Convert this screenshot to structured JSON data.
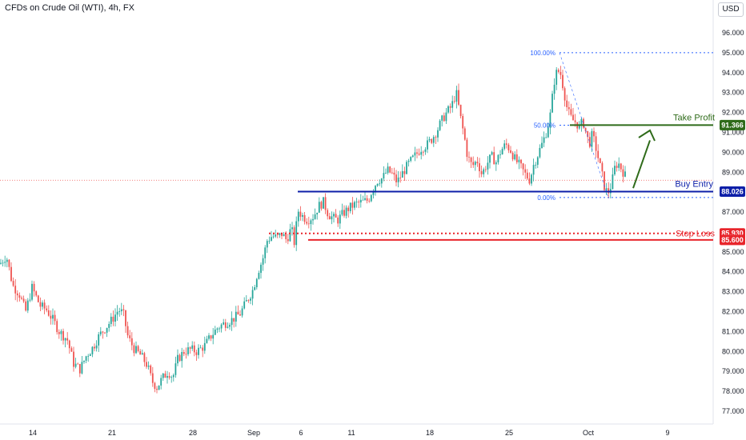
{
  "header": {
    "title": "CFDs on Crude Oil (WTI), 4h, FX",
    "currency_button": "USD"
  },
  "colors": {
    "up": "#26a69a",
    "down": "#ef5350",
    "entry": "#0d1fa8",
    "stop": "#e8252b",
    "target": "#2f6b1a",
    "fib": "#2962ff"
  },
  "chart_data": {
    "type": "candlestick",
    "ylim": [
      76.6,
      96.8
    ],
    "yticks": [
      "96.000",
      "95.000",
      "94.000",
      "93.000",
      "92.000",
      "91.000",
      "90.000",
      "89.000",
      "88.000",
      "87.000",
      "86.000",
      "85.000",
      "84.000",
      "83.000",
      "82.000",
      "81.000",
      "80.000",
      "79.000",
      "78.000",
      "77.000"
    ],
    "xticks": [
      "14",
      "21",
      "28",
      "Sep",
      "6",
      "11",
      "18",
      "25",
      "Oct",
      "9"
    ],
    "levels": {
      "take_profit": {
        "label": "Take Profit",
        "value": 91.366,
        "badge": "91.366"
      },
      "buy_entry": {
        "label": "Buy Entry",
        "value": 88.026,
        "badge": "88.026"
      },
      "stop_loss": {
        "label": "Stop Loss",
        "value": 85.93,
        "badge": "85.930"
      },
      "stop_line2": {
        "value": 85.6,
        "badge": "85.600"
      }
    },
    "fibonacci": [
      {
        "label": "100.00%",
        "value": 95.0
      },
      {
        "label": "50.00%",
        "value": 91.36
      },
      {
        "label": "0.00%",
        "value": 87.73
      }
    ],
    "current_price": 88.6,
    "anchors": [
      [
        0,
        84.4
      ],
      [
        8,
        84.8
      ],
      [
        16,
        83.3
      ],
      [
        24,
        82.9
      ],
      [
        32,
        82.0
      ],
      [
        40,
        83.2
      ],
      [
        50,
        82.3
      ],
      [
        58,
        82.1
      ],
      [
        66,
        81.6
      ],
      [
        74,
        81.0
      ],
      [
        84,
        80.6
      ],
      [
        92,
        79.4
      ],
      [
        100,
        79.1
      ],
      [
        108,
        79.8
      ],
      [
        116,
        80.2
      ],
      [
        124,
        80.8
      ],
      [
        132,
        81.2
      ],
      [
        140,
        81.6
      ],
      [
        148,
        82.1
      ],
      [
        154,
        81.9
      ],
      [
        160,
        80.7
      ],
      [
        168,
        80.1
      ],
      [
        176,
        79.8
      ],
      [
        184,
        79.3
      ],
      [
        190,
        78.5
      ],
      [
        196,
        78.2
      ],
      [
        202,
        78.6
      ],
      [
        210,
        79.0
      ],
      [
        216,
        78.7
      ],
      [
        222,
        79.6
      ],
      [
        230,
        80.0
      ],
      [
        238,
        80.1
      ],
      [
        246,
        80.0
      ],
      [
        256,
        80.3
      ],
      [
        264,
        80.8
      ],
      [
        272,
        81.2
      ],
      [
        280,
        81.4
      ],
      [
        290,
        81.6
      ],
      [
        300,
        81.9
      ],
      [
        308,
        82.5
      ],
      [
        316,
        83.1
      ],
      [
        322,
        84.0
      ],
      [
        328,
        84.6
      ],
      [
        334,
        85.6
      ],
      [
        340,
        85.8
      ],
      [
        346,
        85.7
      ],
      [
        352,
        85.9
      ],
      [
        358,
        85.6
      ],
      [
        364,
        86.2
      ],
      [
        368,
        85.4
      ],
      [
        372,
        87.1
      ],
      [
        378,
        86.8
      ],
      [
        384,
        86.6
      ],
      [
        392,
        86.8
      ],
      [
        398,
        87.3
      ],
      [
        404,
        87.5
      ],
      [
        410,
        86.9
      ],
      [
        416,
        86.7
      ],
      [
        422,
        86.6
      ],
      [
        428,
        86.9
      ],
      [
        436,
        87.2
      ],
      [
        444,
        87.4
      ],
      [
        452,
        87.5
      ],
      [
        460,
        87.6
      ],
      [
        466,
        88.2
      ],
      [
        472,
        88.6
      ],
      [
        478,
        88.7
      ],
      [
        484,
        89.1
      ],
      [
        490,
        88.9
      ],
      [
        496,
        88.5
      ],
      [
        502,
        88.9
      ],
      [
        510,
        89.4
      ],
      [
        518,
        89.8
      ],
      [
        526,
        90.2
      ],
      [
        534,
        90.4
      ],
      [
        540,
        90.7
      ],
      [
        546,
        91.1
      ],
      [
        552,
        91.6
      ],
      [
        558,
        92.0
      ],
      [
        564,
        92.3
      ],
      [
        570,
        93.0
      ],
      [
        576,
        91.6
      ],
      [
        580,
        90.8
      ],
      [
        584,
        89.8
      ],
      [
        590,
        89.3
      ],
      [
        596,
        89.6
      ],
      [
        602,
        88.9
      ],
      [
        608,
        89.4
      ],
      [
        614,
        89.8
      ],
      [
        620,
        89.5
      ],
      [
        626,
        90.1
      ],
      [
        632,
        90.4
      ],
      [
        638,
        90.1
      ],
      [
        644,
        89.6
      ],
      [
        650,
        89.3
      ],
      [
        656,
        88.9
      ],
      [
        662,
        88.6
      ],
      [
        666,
        89.3
      ],
      [
        672,
        89.9
      ],
      [
        678,
        90.5
      ],
      [
        684,
        91.2
      ],
      [
        688,
        92.0
      ],
      [
        692,
        93.5
      ],
      [
        696,
        94.1
      ],
      [
        700,
        94.0
      ],
      [
        704,
        93.2
      ],
      [
        708,
        92.3
      ],
      [
        712,
        91.8
      ],
      [
        716,
        91.6
      ],
      [
        720,
        91.5
      ],
      [
        724,
        91.2
      ],
      [
        728,
        91.6
      ],
      [
        732,
        91.0
      ],
      [
        736,
        90.4
      ],
      [
        740,
        90.9
      ],
      [
        744,
        90.3
      ],
      [
        748,
        89.6
      ],
      [
        752,
        88.9
      ],
      [
        756,
        88.1
      ],
      [
        760,
        88.0
      ],
      [
        764,
        88.4
      ],
      [
        768,
        89.2
      ],
      [
        772,
        89.5
      ],
      [
        776,
        89.2
      ],
      [
        780,
        88.9
      ],
      [
        783,
        88.7
      ]
    ]
  }
}
